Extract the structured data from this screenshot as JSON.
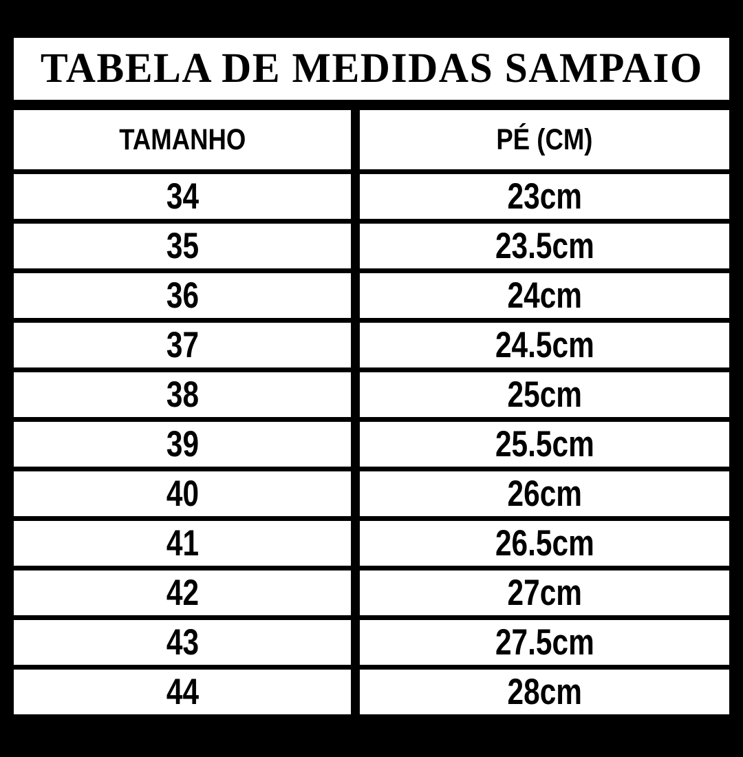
{
  "title": "TABELA DE MEDIDAS SAMPAIO",
  "chart_data": {
    "type": "table",
    "title": "TABELA DE MEDIDAS SAMPAIO",
    "columns": [
      "TAMANHO",
      "PÉ (CM)"
    ],
    "rows": [
      [
        "34",
        "23cm"
      ],
      [
        "35",
        "23.5cm"
      ],
      [
        "36",
        "24cm"
      ],
      [
        "37",
        "24.5cm"
      ],
      [
        "38",
        "25cm"
      ],
      [
        "39",
        "25.5cm"
      ],
      [
        "40",
        "26cm"
      ],
      [
        "41",
        "26.5cm"
      ],
      [
        "42",
        "27cm"
      ],
      [
        "43",
        "27.5cm"
      ],
      [
        "44",
        "28cm"
      ]
    ],
    "sizes_numeric": [
      34,
      35,
      36,
      37,
      38,
      39,
      40,
      41,
      42,
      43,
      44
    ],
    "foot_cm_numeric": [
      23,
      23.5,
      24,
      24.5,
      25,
      25.5,
      26,
      26.5,
      27,
      27.5,
      28
    ]
  },
  "colors": {
    "background": "#000000",
    "cell_background": "#ffffff",
    "text": "#000000",
    "gridline": "#000000"
  }
}
